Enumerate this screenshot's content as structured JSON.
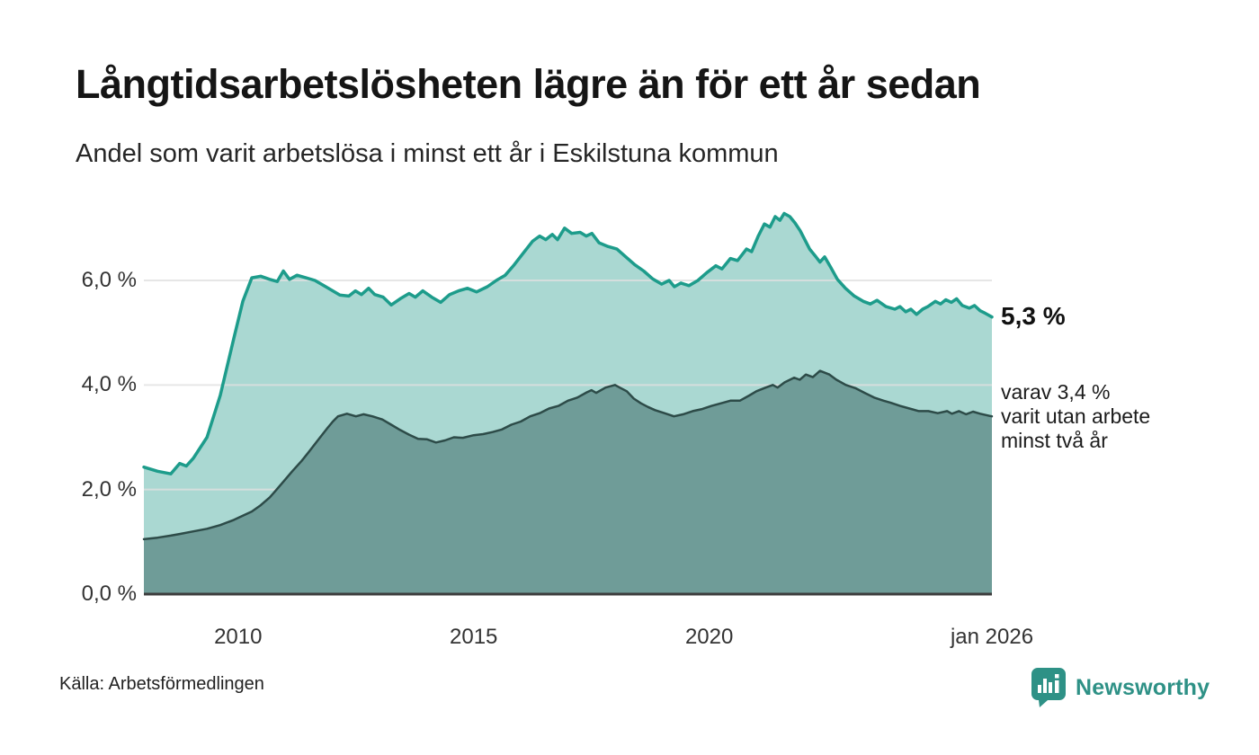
{
  "header": {
    "title": "Långtidsarbetslösheten lägre än för ett år sedan",
    "subtitle": "Andel som varit arbetslösa i minst ett år i Eskilstuna kommun"
  },
  "annotations": {
    "latest_value": "5,3 %",
    "secondary": "varav 3,4 %\nvarit utan arbete\nminst två år"
  },
  "footer": {
    "source": "Källa: Arbetsförmedlingen",
    "brand": "Newsworthy"
  },
  "colors": {
    "accent_line": "#1d9c8b",
    "light_fill": "#aad8d2",
    "dark_line": "#2d4b48",
    "dark_fill": "#6f9c98",
    "gridline": "rgba(224,224,224,0.8)",
    "axis": "#3d3d3d",
    "brand": "#2e9186"
  },
  "chart_data": {
    "type": "area",
    "title": "Långtidsarbetslösheten lägre än för ett år sedan",
    "subtitle": "Andel som varit arbetslösa i minst ett år i Eskilstuna kommun",
    "unit": "%",
    "grid": true,
    "x_domain": [
      2008,
      2026
    ],
    "y_domain": [
      0,
      7.5
    ],
    "yticks": [
      {
        "v": 0,
        "label": "0,0 %"
      },
      {
        "v": 2,
        "label": "2,0 %"
      },
      {
        "v": 4,
        "label": "4,0 %"
      },
      {
        "v": 6,
        "label": "6,0 %"
      }
    ],
    "xticks": [
      {
        "v": 2010,
        "label": "2010"
      },
      {
        "v": 2015,
        "label": "2015"
      },
      {
        "v": 2020,
        "label": "2020"
      },
      {
        "v": 2026,
        "label": "jan 2026"
      }
    ],
    "series": [
      {
        "id": "minst-ett-ar",
        "name": "Arbetslösa minst ett år",
        "latest_label": "5,3 %",
        "latest_value": 5.3,
        "line_color": "#1d9c8b",
        "fill_color": "#aad8d2",
        "line_width": 3.5,
        "points": [
          [
            2008.0,
            2.43
          ],
          [
            2008.29,
            2.35
          ],
          [
            2008.57,
            2.3
          ],
          [
            2008.76,
            2.5
          ],
          [
            2008.9,
            2.45
          ],
          [
            2009.05,
            2.6
          ],
          [
            2009.34,
            3.0
          ],
          [
            2009.62,
            3.8
          ],
          [
            2009.91,
            4.9
          ],
          [
            2010.1,
            5.6
          ],
          [
            2010.29,
            6.05
          ],
          [
            2010.48,
            6.08
          ],
          [
            2010.67,
            6.02
          ],
          [
            2010.83,
            5.98
          ],
          [
            2010.96,
            6.18
          ],
          [
            2011.09,
            6.02
          ],
          [
            2011.25,
            6.1
          ],
          [
            2011.44,
            6.05
          ],
          [
            2011.63,
            6.0
          ],
          [
            2011.82,
            5.9
          ],
          [
            2012.01,
            5.8
          ],
          [
            2012.16,
            5.72
          ],
          [
            2012.35,
            5.7
          ],
          [
            2012.49,
            5.8
          ],
          [
            2012.62,
            5.73
          ],
          [
            2012.77,
            5.85
          ],
          [
            2012.9,
            5.73
          ],
          [
            2013.08,
            5.68
          ],
          [
            2013.25,
            5.53
          ],
          [
            2013.44,
            5.65
          ],
          [
            2013.63,
            5.75
          ],
          [
            2013.76,
            5.68
          ],
          [
            2013.92,
            5.8
          ],
          [
            2014.11,
            5.68
          ],
          [
            2014.3,
            5.58
          ],
          [
            2014.49,
            5.73
          ],
          [
            2014.68,
            5.8
          ],
          [
            2014.87,
            5.85
          ],
          [
            2015.06,
            5.78
          ],
          [
            2015.29,
            5.88
          ],
          [
            2015.48,
            6.0
          ],
          [
            2015.67,
            6.1
          ],
          [
            2015.86,
            6.3
          ],
          [
            2016.05,
            6.52
          ],
          [
            2016.25,
            6.75
          ],
          [
            2016.4,
            6.85
          ],
          [
            2016.53,
            6.78
          ],
          [
            2016.67,
            6.88
          ],
          [
            2016.78,
            6.78
          ],
          [
            2016.93,
            7.0
          ],
          [
            2017.08,
            6.9
          ],
          [
            2017.26,
            6.92
          ],
          [
            2017.39,
            6.85
          ],
          [
            2017.51,
            6.9
          ],
          [
            2017.66,
            6.72
          ],
          [
            2017.85,
            6.65
          ],
          [
            2018.04,
            6.6
          ],
          [
            2018.23,
            6.45
          ],
          [
            2018.42,
            6.3
          ],
          [
            2018.61,
            6.18
          ],
          [
            2018.8,
            6.03
          ],
          [
            2018.99,
            5.93
          ],
          [
            2019.15,
            6.0
          ],
          [
            2019.26,
            5.88
          ],
          [
            2019.4,
            5.95
          ],
          [
            2019.57,
            5.9
          ],
          [
            2019.76,
            6.0
          ],
          [
            2019.95,
            6.15
          ],
          [
            2020.14,
            6.28
          ],
          [
            2020.27,
            6.22
          ],
          [
            2020.45,
            6.42
          ],
          [
            2020.6,
            6.38
          ],
          [
            2020.79,
            6.6
          ],
          [
            2020.9,
            6.55
          ],
          [
            2021.04,
            6.85
          ],
          [
            2021.17,
            7.08
          ],
          [
            2021.29,
            7.02
          ],
          [
            2021.4,
            7.22
          ],
          [
            2021.5,
            7.15
          ],
          [
            2021.59,
            7.28
          ],
          [
            2021.71,
            7.22
          ],
          [
            2021.82,
            7.1
          ],
          [
            2021.93,
            6.95
          ],
          [
            2022.13,
            6.6
          ],
          [
            2022.24,
            6.48
          ],
          [
            2022.35,
            6.35
          ],
          [
            2022.45,
            6.45
          ],
          [
            2022.56,
            6.28
          ],
          [
            2022.72,
            6.02
          ],
          [
            2022.89,
            5.85
          ],
          [
            2023.08,
            5.7
          ],
          [
            2023.27,
            5.6
          ],
          [
            2023.42,
            5.55
          ],
          [
            2023.56,
            5.62
          ],
          [
            2023.75,
            5.5
          ],
          [
            2023.94,
            5.45
          ],
          [
            2024.05,
            5.5
          ],
          [
            2024.17,
            5.4
          ],
          [
            2024.28,
            5.45
          ],
          [
            2024.4,
            5.35
          ],
          [
            2024.53,
            5.45
          ],
          [
            2024.64,
            5.5
          ],
          [
            2024.8,
            5.6
          ],
          [
            2024.91,
            5.55
          ],
          [
            2025.02,
            5.63
          ],
          [
            2025.14,
            5.58
          ],
          [
            2025.25,
            5.65
          ],
          [
            2025.37,
            5.52
          ],
          [
            2025.52,
            5.47
          ],
          [
            2025.63,
            5.52
          ],
          [
            2025.75,
            5.42
          ],
          [
            2025.86,
            5.37
          ],
          [
            2026.0,
            5.3
          ]
        ]
      },
      {
        "id": "minst-tva-ar",
        "name": "Arbetslösa minst två år",
        "latest_value": 3.4,
        "line_color": "#2d4b48",
        "fill_color": "#6f9c98",
        "line_width": 2.5,
        "points": [
          [
            2008.0,
            1.05
          ],
          [
            2008.29,
            1.08
          ],
          [
            2008.57,
            1.12
          ],
          [
            2008.76,
            1.15
          ],
          [
            2009.05,
            1.2
          ],
          [
            2009.34,
            1.25
          ],
          [
            2009.62,
            1.32
          ],
          [
            2009.91,
            1.42
          ],
          [
            2010.1,
            1.5
          ],
          [
            2010.29,
            1.58
          ],
          [
            2010.48,
            1.7
          ],
          [
            2010.67,
            1.85
          ],
          [
            2010.77,
            1.95
          ],
          [
            2010.96,
            2.15
          ],
          [
            2011.15,
            2.35
          ],
          [
            2011.35,
            2.55
          ],
          [
            2011.5,
            2.72
          ],
          [
            2011.7,
            2.95
          ],
          [
            2011.9,
            3.18
          ],
          [
            2012.01,
            3.3
          ],
          [
            2012.12,
            3.4
          ],
          [
            2012.31,
            3.45
          ],
          [
            2012.5,
            3.4
          ],
          [
            2012.66,
            3.44
          ],
          [
            2012.85,
            3.4
          ],
          [
            2013.06,
            3.34
          ],
          [
            2013.25,
            3.24
          ],
          [
            2013.44,
            3.14
          ],
          [
            2013.63,
            3.05
          ],
          [
            2013.82,
            2.97
          ],
          [
            2014.01,
            2.96
          ],
          [
            2014.2,
            2.9
          ],
          [
            2014.39,
            2.94
          ],
          [
            2014.58,
            3.0
          ],
          [
            2014.77,
            2.99
          ],
          [
            2015.0,
            3.04
          ],
          [
            2015.2,
            3.06
          ],
          [
            2015.4,
            3.1
          ],
          [
            2015.6,
            3.15
          ],
          [
            2015.8,
            3.24
          ],
          [
            2016.0,
            3.3
          ],
          [
            2016.2,
            3.4
          ],
          [
            2016.4,
            3.46
          ],
          [
            2016.6,
            3.55
          ],
          [
            2016.8,
            3.6
          ],
          [
            2017.0,
            3.7
          ],
          [
            2017.2,
            3.76
          ],
          [
            2017.4,
            3.86
          ],
          [
            2017.5,
            3.9
          ],
          [
            2017.6,
            3.85
          ],
          [
            2017.8,
            3.95
          ],
          [
            2018.0,
            4.0
          ],
          [
            2018.1,
            3.95
          ],
          [
            2018.25,
            3.88
          ],
          [
            2018.4,
            3.74
          ],
          [
            2018.55,
            3.65
          ],
          [
            2018.7,
            3.58
          ],
          [
            2018.85,
            3.52
          ],
          [
            2019.05,
            3.46
          ],
          [
            2019.25,
            3.4
          ],
          [
            2019.45,
            3.44
          ],
          [
            2019.65,
            3.5
          ],
          [
            2019.85,
            3.54
          ],
          [
            2020.05,
            3.6
          ],
          [
            2020.25,
            3.65
          ],
          [
            2020.45,
            3.7
          ],
          [
            2020.65,
            3.7
          ],
          [
            2020.85,
            3.8
          ],
          [
            2021.0,
            3.88
          ],
          [
            2021.2,
            3.95
          ],
          [
            2021.35,
            4.0
          ],
          [
            2021.45,
            3.95
          ],
          [
            2021.6,
            4.05
          ],
          [
            2021.8,
            4.14
          ],
          [
            2021.92,
            4.1
          ],
          [
            2022.05,
            4.2
          ],
          [
            2022.2,
            4.15
          ],
          [
            2022.35,
            4.27
          ],
          [
            2022.55,
            4.2
          ],
          [
            2022.7,
            4.1
          ],
          [
            2022.9,
            4.0
          ],
          [
            2023.1,
            3.94
          ],
          [
            2023.3,
            3.85
          ],
          [
            2023.5,
            3.76
          ],
          [
            2023.7,
            3.7
          ],
          [
            2023.85,
            3.66
          ],
          [
            2024.05,
            3.6
          ],
          [
            2024.25,
            3.55
          ],
          [
            2024.45,
            3.5
          ],
          [
            2024.65,
            3.5
          ],
          [
            2024.85,
            3.46
          ],
          [
            2025.05,
            3.5
          ],
          [
            2025.15,
            3.45
          ],
          [
            2025.3,
            3.5
          ],
          [
            2025.45,
            3.44
          ],
          [
            2025.6,
            3.49
          ],
          [
            2025.75,
            3.45
          ],
          [
            2025.95,
            3.41
          ],
          [
            2026.0,
            3.4
          ]
        ]
      }
    ]
  }
}
